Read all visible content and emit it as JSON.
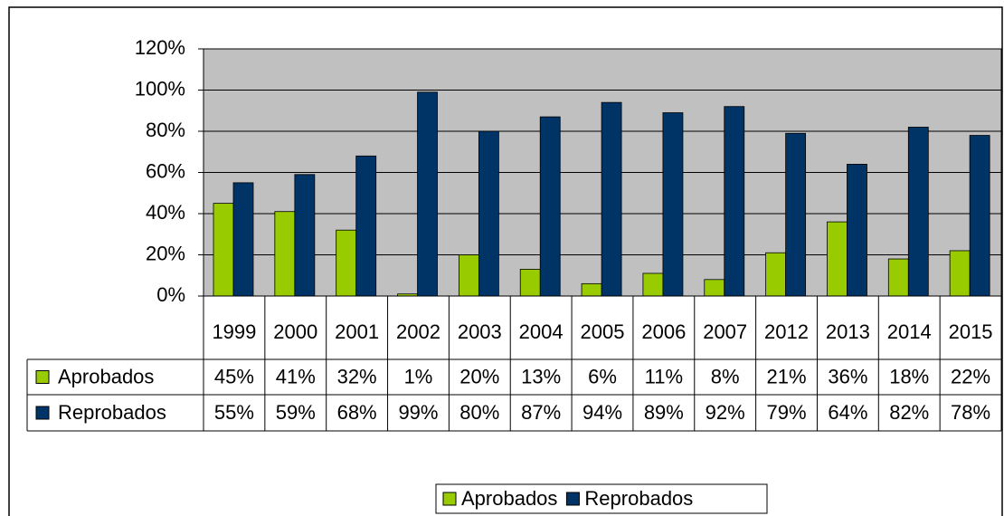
{
  "chart_data": {
    "type": "bar",
    "categories": [
      "1999",
      "2000",
      "2001",
      "2002",
      "2003",
      "2004",
      "2005",
      "2006",
      "2007",
      "2012",
      "2013",
      "2014",
      "2015"
    ],
    "series": [
      {
        "name": "Aprobados",
        "color": "#99cc00",
        "values": [
          45,
          41,
          32,
          1,
          20,
          13,
          6,
          11,
          8,
          21,
          36,
          18,
          22
        ],
        "value_labels": [
          "45%",
          "41%",
          "32%",
          "1%",
          "20%",
          "13%",
          "6%",
          "11%",
          "8%",
          "21%",
          "36%",
          "18%",
          "22%"
        ]
      },
      {
        "name": "Reprobados",
        "color": "#003366",
        "values": [
          55,
          59,
          68,
          99,
          80,
          87,
          94,
          89,
          92,
          79,
          64,
          82,
          78
        ],
        "value_labels": [
          "55%",
          "59%",
          "68%",
          "99%",
          "80%",
          "87%",
          "94%",
          "89%",
          "92%",
          "79%",
          "64%",
          "82%",
          "78%"
        ]
      }
    ],
    "ylim": [
      0,
      120
    ],
    "yticks": [
      {
        "value": 0,
        "label": "0%"
      },
      {
        "value": 20,
        "label": "20%"
      },
      {
        "value": 40,
        "label": "40%"
      },
      {
        "value": 60,
        "label": "60%"
      },
      {
        "value": 80,
        "label": "80%"
      },
      {
        "value": 100,
        "label": "100%"
      },
      {
        "value": 120,
        "label": "120%"
      }
    ],
    "grid": true,
    "plot_background": "#c0c0c0",
    "legend": "bottom"
  }
}
